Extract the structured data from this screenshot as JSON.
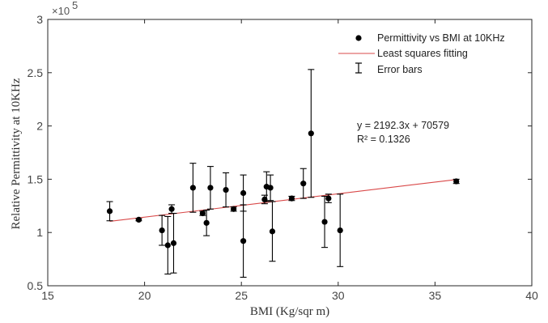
{
  "chart_data": {
    "type": "scatter",
    "xlabel": "BMI (Kg/sqr m)",
    "ylabel": "Relative Permittivity at 10KHz",
    "xlim": [
      15,
      40
    ],
    "ylim": [
      50000,
      300000
    ],
    "xticks": [
      15,
      20,
      25,
      30,
      35,
      40
    ],
    "yticks": [
      50000,
      100000,
      150000,
      200000,
      250000,
      300000
    ],
    "xtick_labels": [
      "15",
      "20",
      "25",
      "30",
      "35",
      "40"
    ],
    "ytick_labels": [
      "0.5",
      "1",
      "1.5",
      "2",
      "2.5",
      "3"
    ],
    "y_multiplier_base": "×10",
    "y_multiplier_exp": "5",
    "grid": false,
    "legend_position": "top-right",
    "legend": [
      {
        "label": "Permittivity vs BMI at 10KHz",
        "marker": "dot"
      },
      {
        "label": "Least squares fitting",
        "marker": "line"
      },
      {
        "label": "Error bars",
        "marker": "errorbar"
      }
    ],
    "series": [
      {
        "name": "Permittivity vs BMI at 10KHz",
        "color": "#000000",
        "points": [
          {
            "x": 18.2,
            "y": 120000,
            "lo": 111000,
            "hi": 129000
          },
          {
            "x": 19.7,
            "y": 112000,
            "lo": 111000,
            "hi": 113000
          },
          {
            "x": 20.9,
            "y": 102000,
            "lo": 88000,
            "hi": 116000
          },
          {
            "x": 21.2,
            "y": 88000,
            "lo": 61000,
            "hi": 115000
          },
          {
            "x": 21.4,
            "y": 122000,
            "lo": 118000,
            "hi": 126000
          },
          {
            "x": 21.5,
            "y": 90000,
            "lo": 62000,
            "hi": 118000
          },
          {
            "x": 22.5,
            "y": 142000,
            "lo": 119000,
            "hi": 165000
          },
          {
            "x": 23.0,
            "y": 118000,
            "lo": 116000,
            "hi": 120000
          },
          {
            "x": 23.2,
            "y": 109000,
            "lo": 97000,
            "hi": 121000
          },
          {
            "x": 23.4,
            "y": 142000,
            "lo": 122000,
            "hi": 162000
          },
          {
            "x": 24.2,
            "y": 140000,
            "lo": 124000,
            "hi": 156000
          },
          {
            "x": 24.6,
            "y": 122000,
            "lo": 120000,
            "hi": 124000
          },
          {
            "x": 25.1,
            "y": 137000,
            "lo": 120000,
            "hi": 154000
          },
          {
            "x": 25.1,
            "y": 92000,
            "lo": 58000,
            "hi": 126000
          },
          {
            "x": 26.2,
            "y": 131000,
            "lo": 127000,
            "hi": 135000
          },
          {
            "x": 26.3,
            "y": 143000,
            "lo": 129000,
            "hi": 157000
          },
          {
            "x": 26.5,
            "y": 142000,
            "lo": 130000,
            "hi": 154000
          },
          {
            "x": 26.6,
            "y": 101000,
            "lo": 73000,
            "hi": 129000
          },
          {
            "x": 27.6,
            "y": 132000,
            "lo": 130000,
            "hi": 134000
          },
          {
            "x": 28.2,
            "y": 146000,
            "lo": 132000,
            "hi": 160000
          },
          {
            "x": 28.6,
            "y": 193000,
            "lo": 133000,
            "hi": 253000
          },
          {
            "x": 29.3,
            "y": 110000,
            "lo": 86000,
            "hi": 134000
          },
          {
            "x": 29.5,
            "y": 132000,
            "lo": 128000,
            "hi": 136000
          },
          {
            "x": 30.1,
            "y": 102000,
            "lo": 68000,
            "hi": 136000
          },
          {
            "x": 36.1,
            "y": 148000,
            "lo": 146000,
            "hi": 150000
          }
        ]
      }
    ],
    "fit": {
      "name": "Least squares fitting",
      "color": "#d94848",
      "slope": 2192.3,
      "intercept": 70579,
      "x_range": [
        18.2,
        36.1
      ]
    },
    "annotation_lines": [
      "y = 2192.3x + 70579",
      "R² = 0.1326"
    ]
  }
}
